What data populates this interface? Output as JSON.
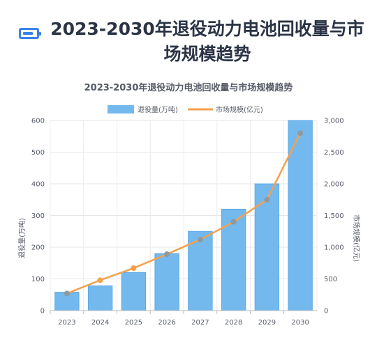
{
  "header": {
    "title": "2023-2030年退役动力电池回收量与市场规模趋势",
    "icon": "battery-icon",
    "accent_color": "#3b82e8"
  },
  "chart_data": {
    "type": "bar",
    "title": "2023-2030年退役动力电池回收量与市场规模趋势",
    "categories": [
      "2023",
      "2024",
      "2025",
      "2026",
      "2027",
      "2028",
      "2029",
      "2030"
    ],
    "series": [
      {
        "name": "退役量(万吨)",
        "type": "bar",
        "axis": "left",
        "values": [
          58,
          78,
          120,
          180,
          250,
          320,
          400,
          600
        ],
        "color": "#74b9ee"
      },
      {
        "name": "市场规模(亿元)",
        "type": "line",
        "axis": "right",
        "values": [
          270,
          480,
          670,
          890,
          1120,
          1400,
          1750,
          2800
        ],
        "color": "#f5a04b"
      }
    ],
    "ylabel_left": "退役量(万吨)",
    "ylabel_right": "市场规模(亿元)",
    "ylim_left": [
      0,
      600
    ],
    "ylim_right": [
      0,
      3000
    ],
    "yticks_left": [
      "0",
      "100",
      "200",
      "300",
      "400",
      "500",
      "600"
    ],
    "yticks_right": [
      "0",
      "500",
      "1,000",
      "1,500",
      "2,000",
      "2,500",
      "3,000"
    ],
    "grid": true,
    "legend_position": "top-center"
  }
}
